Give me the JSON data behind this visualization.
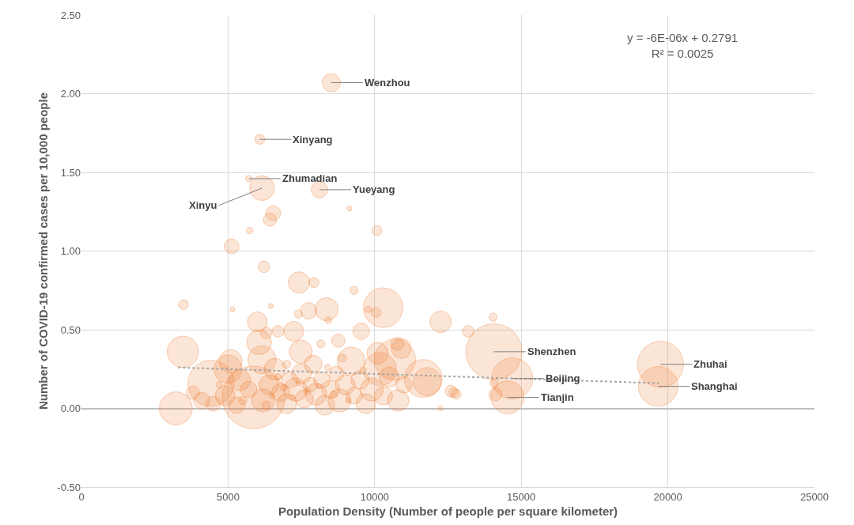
{
  "chart_data": {
    "type": "bubble",
    "xlabel": "Population Density (Number of people per square kilometer)",
    "ylabel": "Number of COVID-19 confirmed cases per 10,000 people",
    "xlim": [
      0,
      25000
    ],
    "xticks": [
      0,
      5000,
      10000,
      15000,
      20000,
      25000
    ],
    "ylim": [
      -0.5,
      2.5
    ],
    "yticks": [
      {
        "value": -0.5,
        "label": "-0.50"
      },
      {
        "value": 0,
        "label": "0.00"
      },
      {
        "value": 0.5,
        "label": "0.50"
      },
      {
        "value": 1,
        "label": "1.00"
      },
      {
        "value": 1.5,
        "label": "1.50"
      },
      {
        "value": 2,
        "label": "2.00"
      },
      {
        "value": 2.5,
        "label": "2.50"
      }
    ],
    "grid": true,
    "series": [
      {
        "color": "#ed7d31",
        "x": [
          8520,
          6080,
          5710,
          6160,
          8120,
          14070,
          14690,
          14530,
          19750,
          19670,
          9140,
          10080,
          6540,
          6430,
          5740,
          5120,
          6220,
          3480,
          5150,
          6460,
          7420,
          7930,
          6000,
          7750,
          8360,
          8420,
          7400,
          9300,
          10290,
          9780,
          10050,
          12250,
          9540,
          7240,
          6700,
          6300,
          6060,
          3460,
          8760,
          8170,
          7480,
          6160,
          5090,
          4420,
          5870,
          3220,
          10690,
          11660,
          10910,
          10180,
          12700,
          12250,
          13190,
          14040,
          12600,
          12780,
          14070,
          14120,
          11790,
          10770,
          3800,
          4100,
          4500,
          4900,
          5300,
          5000,
          5400,
          5700,
          6200,
          6400,
          6600,
          6800,
          7000,
          7100,
          7300,
          7500,
          7600,
          7800,
          7900,
          8000,
          8200,
          8300,
          8500,
          8700,
          8800,
          9000,
          9200,
          9300,
          9500,
          9700,
          9900,
          10100,
          10300,
          10500,
          10800,
          11000,
          6500,
          6900,
          7200,
          7700,
          8100,
          8600,
          9100,
          6700,
          7400,
          8400,
          7000,
          8900,
          6300,
          9600,
          5500,
          4700
        ],
        "values": [
          2.07,
          1.71,
          1.46,
          1.4,
          1.39,
          0.36,
          0.19,
          0.07,
          0.28,
          0.14,
          1.27,
          1.13,
          1.24,
          1.2,
          1.13,
          1.03,
          0.9,
          0.66,
          0.63,
          0.65,
          0.8,
          0.8,
          0.55,
          0.62,
          0.63,
          0.56,
          0.6,
          0.75,
          0.64,
          0.63,
          0.61,
          0.55,
          0.49,
          0.49,
          0.49,
          0.48,
          0.42,
          0.36,
          0.43,
          0.41,
          0.36,
          0.31,
          0.3,
          0.16,
          0.07,
          0.0,
          0.31,
          0.19,
          0.38,
          0.25,
          0.1,
          0.0,
          0.49,
          0.58,
          0.11,
          0.09,
          0.16,
          0.09,
          0.17,
          0.41,
          0.1,
          0.05,
          0.03,
          0.08,
          0.02,
          0.25,
          0.18,
          0.12,
          0.05,
          0.15,
          0.25,
          0.1,
          0.03,
          0.18,
          0.12,
          0.22,
          0.06,
          0.15,
          0.28,
          0.09,
          0.18,
          0.02,
          0.12,
          0.22,
          0.05,
          0.15,
          0.3,
          0.08,
          0.18,
          0.03,
          0.12,
          0.35,
          0.08,
          0.2,
          0.05,
          0.15,
          0.08,
          0.13,
          0.07,
          0.11,
          0.14,
          0.09,
          0.05,
          0.2,
          0.16,
          0.26,
          0.28,
          0.32,
          0.02,
          0.24,
          0.05,
          0.15
        ],
        "sizes": [
          0.084,
          0.025,
          0.011,
          0.156,
          0.069,
          0.8,
          0.433,
          0.277,
          0.543,
          0.4,
          0.006,
          0.025,
          0.056,
          0.044,
          0.011,
          0.056,
          0.034,
          0.025,
          0.006,
          0.006,
          0.117,
          0.025,
          0.1,
          0.069,
          0.136,
          0.011,
          0.017,
          0.017,
          0.4,
          0.011,
          0.025,
          0.117,
          0.069,
          0.1,
          0.034,
          0.034,
          0.156,
          0.25,
          0.044,
          0.017,
          0.136,
          0.2,
          0.136,
          0.543,
          1,
          0.277,
          0.433,
          0.366,
          0.1,
          0.277,
          0.025,
          0.006,
          0.034,
          0.017,
          0.034,
          0.025,
          0.017,
          0.044,
          0.2,
          0.044,
          0.044,
          0.069,
          0.056,
          0.1,
          0.069,
          0.2,
          0.117,
          0.069,
          0.136,
          0.1,
          0.117,
          0.084,
          0.1,
          0.069,
          0.136,
          0.1,
          0.084,
          0.056,
          0.084,
          0.117,
          0.069,
          0.1,
          0.084,
          0.056,
          0.136,
          0.1,
          0.2,
          0.069,
          0.084,
          0.1,
          0.136,
          0.117,
          0.084,
          0.1,
          0.117,
          0.069,
          0.006,
          0.011,
          0.006,
          0.011,
          0.006,
          0.011,
          0.006,
          0.011,
          0.006,
          0.011,
          0.017,
          0.017,
          0.017,
          0.011,
          0.017,
          0.011
        ]
      },
      {
        "type": "line",
        "color": "#a6a6a6",
        "line_style": "dotted",
        "x": [
          3300,
          19700
        ],
        "values": [
          0.26,
          0.16
        ]
      }
    ],
    "annotations": [
      "y = -6E-06x + 0.2791\nR² = 0.0025",
      {
        "text": "Wenzhou",
        "x": 8520,
        "y": 2.07
      },
      {
        "text": "Xinyang",
        "x": 6080,
        "y": 1.71
      },
      {
        "text": "Zhumadian",
        "x": 5710,
        "y": 1.46
      },
      {
        "text": "Xinyu",
        "x": 6160,
        "y": 1.4
      },
      {
        "text": "Yueyang",
        "x": 8120,
        "y": 1.39
      },
      {
        "text": "Shenzhen",
        "x": 14070,
        "y": 0.36
      },
      {
        "text": "Beijing",
        "x": 14690,
        "y": 0.19
      },
      {
        "text": "Tianjin",
        "x": 14530,
        "y": 0.07
      },
      {
        "text": "Zhuhai",
        "x": 19750,
        "y": 0.28
      },
      {
        "text": "Shanghai",
        "x": 19670,
        "y": 0.14
      }
    ]
  }
}
